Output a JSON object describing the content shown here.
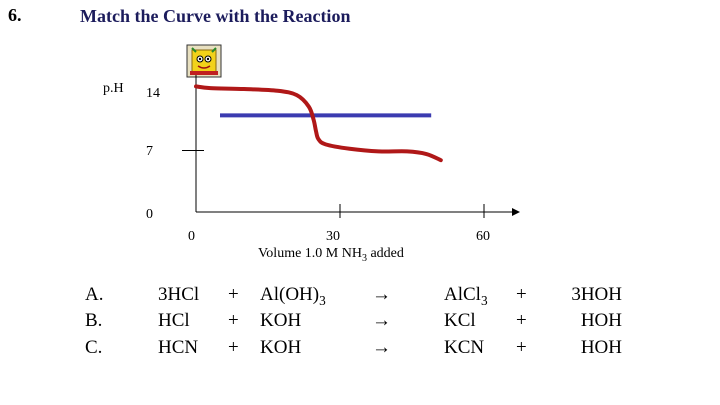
{
  "slide": {
    "number": "6.",
    "title": "Match the Curve with the Reaction"
  },
  "chart_data": {
    "type": "line",
    "title": "",
    "ylabel": "p.H",
    "xlabel_main": "Volume 1.0 M NH",
    "xlabel_sub": "3",
    "xlabel_tail": " added",
    "y_ticks": [
      "14",
      "7",
      "0"
    ],
    "x_ticks": [
      "0",
      "30",
      "60"
    ],
    "xlim": [
      0,
      60
    ],
    "ylim": [
      0,
      14
    ],
    "series": [
      {
        "color": "#b01818",
        "x": [
          0,
          3,
          10,
          17,
          21,
          23.5,
          24.5,
          25,
          25.5,
          27,
          32,
          38,
          44,
          48,
          51
        ],
        "y": [
          14.3,
          14.1,
          14.0,
          13.8,
          13.3,
          12.0,
          10.5,
          9.2,
          8.3,
          7.7,
          7.2,
          6.9,
          6.9,
          6.6,
          5.9
        ]
      }
    ],
    "hline": {
      "y": 11,
      "x_start": 5,
      "x_end": 49,
      "color": "#3b3bb0"
    }
  },
  "reactions": [
    {
      "letter": "A.",
      "reactant1": "3HCl",
      "plus1": "+",
      "reactant2": "Al(OH)",
      "reactant2_sub": "3",
      "arrow": "→",
      "product1": "AlCl",
      "product1_sub": "3",
      "plus2": "+",
      "product2": "3HOH"
    },
    {
      "letter": "B.",
      "reactant1": "HCl",
      "plus1": "+",
      "reactant2": "KOH",
      "reactant2_sub": "",
      "arrow": "→",
      "product1": "KCl",
      "product1_sub": "",
      "plus2": "+",
      "product2": "HOH"
    },
    {
      "letter": "C.",
      "reactant1": "HCN",
      "plus1": "+",
      "reactant2": "KOH",
      "reactant2_sub": "",
      "arrow": "→",
      "product1": "KCN",
      "product1_sub": "",
      "plus2": "+",
      "product2": "HOH"
    }
  ],
  "icon": {
    "name": "cartoon-character-icon"
  }
}
